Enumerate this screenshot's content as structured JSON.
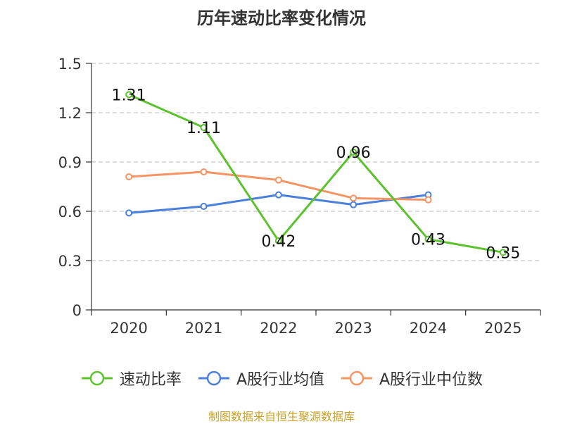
{
  "chart_data": {
    "type": "line",
    "title": "历年速动比率变化情况",
    "categories": [
      "2020",
      "2021",
      "2022",
      "2023",
      "2024",
      "2025"
    ],
    "ylim": [
      0,
      1.5
    ],
    "yticks": [
      "0",
      "0.3",
      "0.6",
      "0.9",
      "1.2",
      "1.5"
    ],
    "ytick_values": [
      0,
      0.3,
      0.6,
      0.9,
      1.2,
      1.5
    ],
    "grid": true,
    "legend_position": "bottom",
    "series": [
      {
        "name": "速动比率",
        "color": "#5cc22d",
        "values": [
          1.31,
          1.11,
          0.42,
          0.96,
          0.43,
          0.35
        ],
        "labels": [
          "1.31",
          "1.11",
          "0.42",
          "0.96",
          "0.43",
          "0.35"
        ]
      },
      {
        "name": "A股行业均值",
        "color": "#4a7fdb",
        "values": [
          0.59,
          0.63,
          0.7,
          0.64,
          0.7,
          null
        ]
      },
      {
        "name": "A股行业中位数",
        "color": "#f79463",
        "values": [
          0.81,
          0.84,
          0.79,
          0.68,
          0.67,
          null
        ]
      }
    ],
    "source": "制图数据来自恒生聚源数据库"
  }
}
